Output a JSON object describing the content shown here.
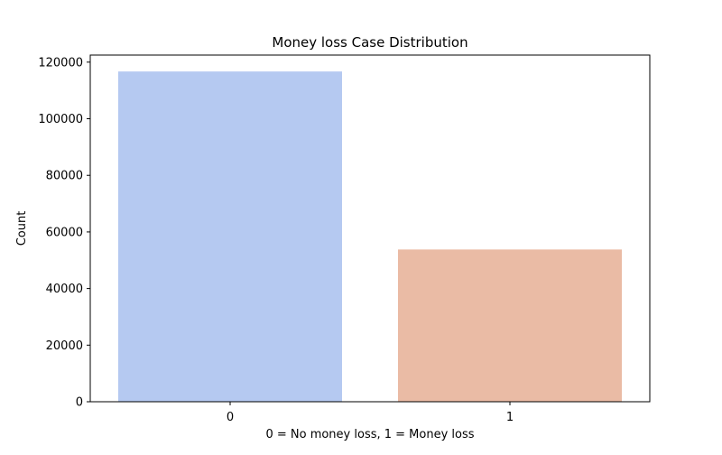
{
  "chart_data": {
    "type": "bar",
    "title": "Money loss Case Distribution",
    "xlabel": "0 = No money loss, 1 = Money loss",
    "ylabel": "Count",
    "categories": [
      "0",
      "1"
    ],
    "values": [
      116700,
      53800
    ],
    "colors": [
      "#b5c9f1",
      "#eabba5"
    ],
    "ylim": [
      0,
      122500
    ],
    "yticks": [
      0,
      20000,
      40000,
      60000,
      80000,
      100000,
      120000
    ],
    "ytick_labels": [
      "0",
      "20000",
      "40000",
      "60000",
      "80000",
      "100000",
      "120000"
    ],
    "grid": false,
    "legend": null
  }
}
